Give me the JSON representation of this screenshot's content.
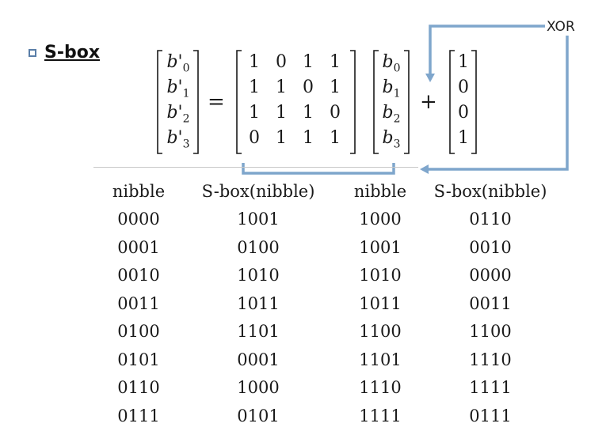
{
  "heading": "S-box",
  "equation": {
    "lhs": [
      "b'0",
      "b'1",
      "b'2",
      "b'3"
    ],
    "equals": "=",
    "matrix": [
      [
        "1",
        "0",
        "1",
        "1"
      ],
      [
        "1",
        "1",
        "0",
        "1"
      ],
      [
        "1",
        "1",
        "1",
        "0"
      ],
      [
        "0",
        "1",
        "1",
        "1"
      ]
    ],
    "input_vector": [
      "b0",
      "b1",
      "b2",
      "b3"
    ],
    "plus": "+",
    "constant": [
      "1",
      "0",
      "0",
      "1"
    ]
  },
  "xor_label": "XOR",
  "table": {
    "headers": [
      "nibble",
      "S-box(nibble)",
      "nibble",
      "S-box(nibble)"
    ],
    "rows": [
      [
        "0000",
        "1001",
        "1000",
        "0110"
      ],
      [
        "0001",
        "0100",
        "1001",
        "0010"
      ],
      [
        "0010",
        "1010",
        "1010",
        "0000"
      ],
      [
        "0011",
        "1011",
        "1011",
        "0011"
      ],
      [
        "0100",
        "1101",
        "1100",
        "1100"
      ],
      [
        "0101",
        "0001",
        "1101",
        "1110"
      ],
      [
        "0110",
        "1000",
        "1110",
        "1111"
      ],
      [
        "0111",
        "0101",
        "1111",
        "0111"
      ]
    ]
  },
  "colors": {
    "accent": "#7fa6cc",
    "bullet": "#5a7ea8"
  }
}
